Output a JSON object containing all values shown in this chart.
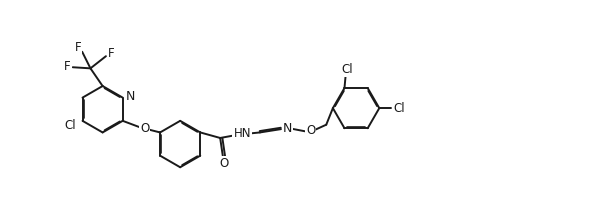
{
  "bg_color": "#ffffff",
  "line_color": "#1a1a1a",
  "line_width": 1.4,
  "font_size": 8.5,
  "figsize": [
    5.92,
    2.24
  ],
  "dpi": 100,
  "xlim": [
    0,
    10.5
  ],
  "ylim": [
    0,
    3.8
  ]
}
